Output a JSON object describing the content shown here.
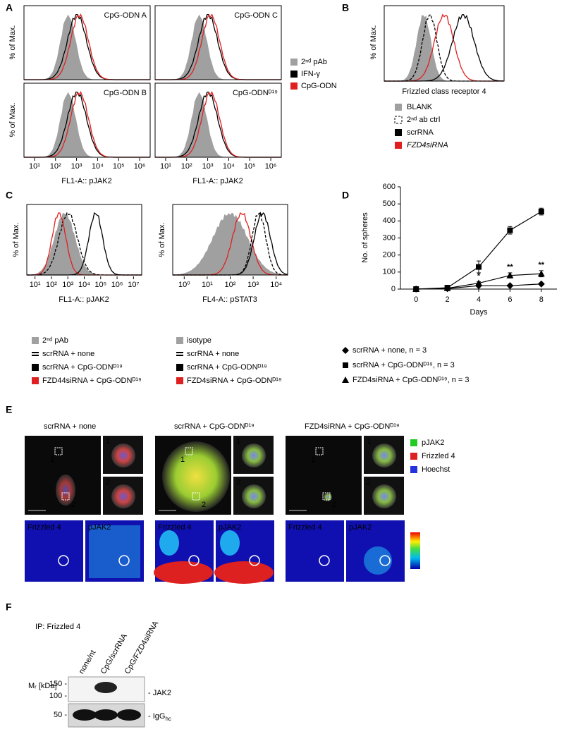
{
  "panel_a": {
    "label": "A",
    "titles": [
      "CpG-ODN A",
      "CpG-ODN C",
      "CpG-ODN B",
      "CpG-ODNᴰ¹⁹"
    ],
    "y_label": "% of Max.",
    "x_label": "FL1-A:: pJAK2",
    "xticks": [
      "10¹",
      "10²",
      "10³",
      "10⁴",
      "10⁵",
      "10⁶"
    ],
    "legend": [
      {
        "name": "2ⁿᵈ pAb",
        "color": "#a0a0a0"
      },
      {
        "name": "IFN-γ",
        "color": "#000000"
      },
      {
        "name": "CpG-ODN",
        "color": "#e02020"
      }
    ]
  },
  "panel_b": {
    "label": "B",
    "y_label": "% of Max.",
    "x_label": "Frizzled class receptor 4",
    "legend": [
      {
        "name": "BLANK",
        "color": "#a0a0a0"
      },
      {
        "name": "2ⁿᵈ ab ctrl",
        "color": "#000000"
      },
      {
        "name": "scrRNA",
        "color": "#000000"
      },
      {
        "name": "FZD4siRNA",
        "color": "#e02020"
      }
    ]
  },
  "panel_c": {
    "label": "C",
    "y_label": "% of Max.",
    "left": {
      "x_label": "FL1-A:: pJAK2",
      "xticks": [
        "10¹",
        "10²",
        "10³",
        "10⁴",
        "10⁵",
        "10⁶",
        "10⁷"
      ],
      "legend": [
        "2ⁿᵈ pAb",
        "scrRNA + none",
        "scrRNA + CpG-ODNᴰ¹⁹",
        "FZD44siRNA + CpG-ODNᴰ¹⁹"
      ]
    },
    "right": {
      "x_label": "FL4-A:: pSTAT3",
      "xticks": [
        "10⁰",
        "10¹",
        "10²",
        "10³",
        "10⁴"
      ],
      "legend": [
        "isotype",
        "scrRNA + none",
        "scrRNA + CpG-ODNᴰ¹⁹",
        "FZD4siRNA + CpG-ODNᴰ¹⁹"
      ]
    }
  },
  "panel_d": {
    "label": "D",
    "type": "line",
    "y_label": "No. of spheres",
    "x_label": "Days",
    "x": [
      0,
      2,
      4,
      6,
      8
    ],
    "xlim": [
      -1,
      9
    ],
    "xticks": [
      0,
      2,
      4,
      6,
      8
    ],
    "ylim": [
      0,
      600
    ],
    "yticks": [
      0,
      100,
      200,
      300,
      400,
      500,
      600
    ],
    "series": [
      {
        "name": "scrRNA + none, n = 3",
        "marker": "diamond",
        "color": "#000000",
        "values": [
          0,
          3,
          20,
          20,
          30
        ],
        "errors": [
          0,
          1,
          5,
          4,
          5
        ]
      },
      {
        "name": "scrRNA + CpG-ODNᴰ¹⁹, n = 3",
        "marker": "square",
        "color": "#000000",
        "values": [
          0,
          8,
          130,
          345,
          455
        ],
        "errors": [
          0,
          3,
          35,
          22,
          20
        ]
      },
      {
        "name": "FZD4siRNA + CpG-ODNᴰ¹⁹, n = 3",
        "marker": "triangle",
        "color": "#000000",
        "values": [
          0,
          5,
          35,
          80,
          90
        ],
        "errors": [
          0,
          2,
          8,
          15,
          18
        ]
      }
    ],
    "annotations": [
      {
        "text": "*",
        "x": 4
      },
      {
        "text": "**",
        "x": 6
      },
      {
        "text": "**",
        "x": 8
      }
    ]
  },
  "panel_e": {
    "label": "E",
    "groups": [
      "scrRNA + none",
      "scrRNA + CpG-ODNᴰ¹⁹",
      "FZD4siRNA + CpG-ODNᴰ¹⁹"
    ],
    "insets": [
      "1",
      "2"
    ],
    "heatmaps": [
      "Frizzled 4",
      "pJAK2"
    ],
    "legend": [
      {
        "name": "pJAK2",
        "color": "#22cc22"
      },
      {
        "name": "Frizzled 4",
        "color": "#dd2222"
      },
      {
        "name": "Hoechst",
        "color": "#2233dd"
      }
    ]
  },
  "panel_f": {
    "label": "F",
    "ip": "IP: Frizzled 4",
    "lanes": [
      "none/nt",
      "CpG/scrRNA",
      "CpG/FZD4siRNA"
    ],
    "mr_label": "Mᵣ [kDa]",
    "markers": [
      "150 -",
      "100 -",
      "50 -"
    ],
    "band_jak2": "- JAK2",
    "band_igg": {
      "text": "- IgG",
      "sub": "hc"
    }
  }
}
